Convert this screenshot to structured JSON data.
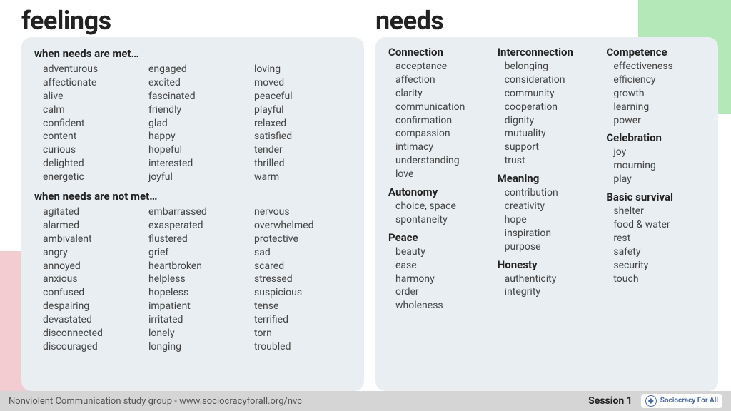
{
  "colors": {
    "card_bg": "#e9eef2",
    "green_block": "#b5e8b8",
    "pink_block": "#f2ccd1",
    "footer_bg": "#d5d5d5",
    "heading": "#222222",
    "body_text": "#444444",
    "logo_accent": "#4a6aa0"
  },
  "feelings": {
    "title": "feelings",
    "met": {
      "heading": "when needs are met…",
      "columns": [
        [
          "adventurous",
          "affectionate",
          "alive",
          "calm",
          "confident",
          "content",
          "curious",
          "delighted",
          "energetic"
        ],
        [
          "engaged",
          "excited",
          "fascinated",
          "friendly",
          "glad",
          "happy",
          "hopeful",
          "interested",
          "joyful"
        ],
        [
          "loving",
          "moved",
          "peaceful",
          "playful",
          "relaxed",
          "satisfied",
          "tender",
          "thrilled",
          "warm"
        ]
      ]
    },
    "unmet": {
      "heading": "when needs are not met…",
      "columns": [
        [
          "agitated",
          "alarmed",
          "ambivalent",
          "angry",
          "annoyed",
          "anxious",
          "confused",
          "despairing",
          "devastated",
          "disconnected",
          "discouraged"
        ],
        [
          "embarrassed",
          "exasperated",
          "flustered",
          "grief",
          "heartbroken",
          "helpless",
          "hopeless",
          "impatient",
          "irritated",
          "lonely",
          "longing"
        ],
        [
          "nervous",
          "overwhelmed",
          "protective",
          "sad",
          "scared",
          "stressed",
          "suspicious",
          "tense",
          "terrified",
          "torn",
          "troubled"
        ]
      ]
    }
  },
  "needs": {
    "title": "needs",
    "columns": [
      [
        {
          "heading": "Connection",
          "items": [
            "acceptance",
            "affection",
            "clarity",
            "communication",
            "confirmation",
            "compassion",
            "intimacy",
            "understanding",
            "love"
          ]
        },
        {
          "heading": "Autonomy",
          "items": [
            "choice, space",
            "spontaneity"
          ]
        },
        {
          "heading": "Peace",
          "items": [
            "beauty",
            "ease",
            "harmony",
            "order",
            "wholeness"
          ]
        }
      ],
      [
        {
          "heading": "Interconnection",
          "items": [
            "belonging",
            "consideration",
            "community",
            "cooperation",
            "dignity",
            "mutuality",
            "support",
            "trust"
          ]
        },
        {
          "heading": "Meaning",
          "items": [
            "contribution",
            "creativity",
            "hope",
            "inspiration",
            "purpose"
          ]
        },
        {
          "heading": "Honesty",
          "items": [
            "authenticity",
            "integrity"
          ]
        }
      ],
      [
        {
          "heading": "Competence",
          "items": [
            "effectiveness",
            "efficiency",
            "growth",
            "learning",
            "power"
          ]
        },
        {
          "heading": "Celebration",
          "items": [
            "joy",
            "mourning",
            "play"
          ]
        },
        {
          "heading": "Basic survival",
          "items": [
            "shelter",
            "food & water",
            "rest",
            "safety",
            "security",
            "touch"
          ]
        }
      ]
    ]
  },
  "footer": {
    "text": "Nonviolent Communication study group - www.sociocracyforall.org/nvc",
    "session": "Session 1",
    "logo_text": "Sociocracy For All"
  }
}
